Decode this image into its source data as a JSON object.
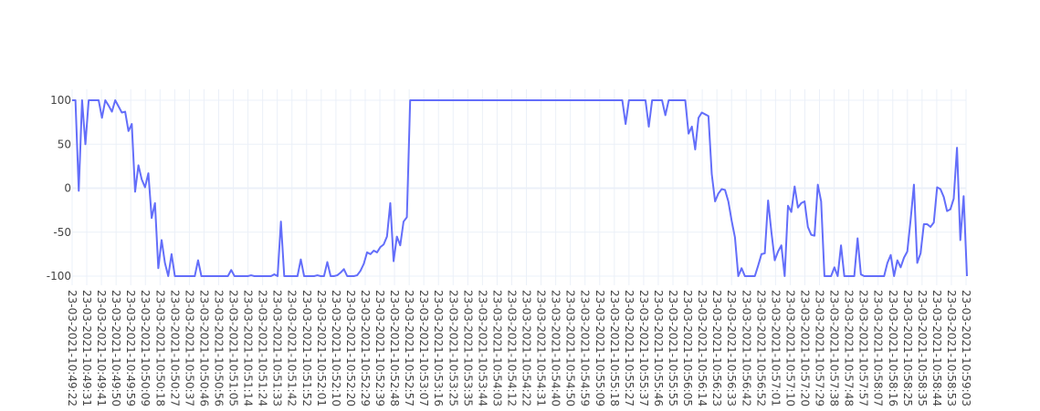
{
  "chart_data": {
    "type": "line",
    "title": "",
    "xlabel": "",
    "ylabel": "",
    "ylim": [
      -110,
      110
    ],
    "y_ticks": [
      100,
      50,
      0,
      -50,
      -100
    ],
    "grid": true,
    "legend": "none",
    "colors": {
      "line": "#636efa",
      "grid": "#ebf0f8",
      "zero_line": "#ebf0f8",
      "background": "#ffffff",
      "tick_text": "#444444"
    },
    "x_ticks": [
      "23-03-2021-10:49:22",
      "23-03-2021-10:49:31",
      "23-03-2021-10:49:41",
      "23-03-2021-10:49:50",
      "23-03-2021-10:49:59",
      "23-03-2021-10:50:09",
      "23-03-2021-10:50:18",
      "23-03-2021-10:50:27",
      "23-03-2021-10:50:37",
      "23-03-2021-10:50:46",
      "23-03-2021-10:50:56",
      "23-03-2021-10:51:05",
      "23-03-2021-10:51:14",
      "23-03-2021-10:51:24",
      "23-03-2021-10:51:33",
      "23-03-2021-10:51:42",
      "23-03-2021-10:51:52",
      "23-03-2021-10:52:01",
      "23-03-2021-10:52:10",
      "23-03-2021-10:52:20",
      "23-03-2021-10:52:29",
      "23-03-2021-10:52:39",
      "23-03-2021-10:52:48",
      "23-03-2021-10:52:57",
      "23-03-2021-10:53:07",
      "23-03-2021-10:53:16",
      "23-03-2021-10:53:25",
      "23-03-2021-10:53:35",
      "23-03-2021-10:53:44",
      "23-03-2021-10:54:03",
      "23-03-2021-10:54:12",
      "23-03-2021-10:54:22",
      "23-03-2021-10:54:31",
      "23-03-2021-10:54:40",
      "23-03-2021-10:54:50",
      "23-03-2021-10:54:59",
      "23-03-2021-10:55:09",
      "23-03-2021-10:55:18",
      "23-03-2021-10:55:27",
      "23-03-2021-10:55:37",
      "23-03-2021-10:55:46",
      "23-03-2021-10:55:55",
      "23-03-2021-10:56:05",
      "23-03-2021-10:56:14",
      "23-03-2021-10:56:23",
      "23-03-2021-10:56:33",
      "23-03-2021-10:56:42",
      "23-03-2021-10:56:52",
      "23-03-2021-10:57:01",
      "23-03-2021-10:57:10",
      "23-03-2021-10:57:20",
      "23-03-2021-10:57:29",
      "23-03-2021-10:57:38",
      "23-03-2021-10:57:48",
      "23-03-2021-10:57:57",
      "23-03-2021-10:58:07",
      "23-03-2021-10:58:16",
      "23-03-2021-10:58:25",
      "23-03-2021-10:58:35",
      "23-03-2021-10:58:44",
      "23-03-2021-10:58:53",
      "23-03-2021-10:59:03"
    ],
    "series": [
      {
        "values": [
          100,
          100,
          -3,
          100,
          50,
          100,
          100,
          100,
          100,
          80,
          100,
          94,
          87,
          100,
          93,
          86,
          87,
          65,
          73,
          -4,
          26,
          10,
          1,
          17,
          -34,
          -17,
          -91,
          -59,
          -85,
          -100,
          -75,
          -100,
          -100,
          -100,
          -100,
          -100,
          -100,
          -100,
          -82,
          -100,
          -100,
          -100,
          -100,
          -100,
          -100,
          -100,
          -100,
          -100,
          -93,
          -100,
          -100,
          -100,
          -100,
          -100,
          -99,
          -100,
          -100,
          -100,
          -100,
          -100,
          -100,
          -98,
          -100,
          -38,
          -100,
          -100,
          -100,
          -100,
          -100,
          -81,
          -100,
          -100,
          -100,
          -100,
          -99,
          -100,
          -100,
          -84,
          -100,
          -100,
          -99,
          -96,
          -92,
          -100,
          -100,
          -100,
          -99,
          -94,
          -86,
          -73,
          -75,
          -71,
          -73,
          -67,
          -64,
          -55,
          -17,
          -83,
          -55,
          -65,
          -38,
          -33,
          100,
          100,
          100,
          100,
          100,
          100,
          100,
          100,
          100,
          100,
          100,
          100,
          100,
          100,
          100,
          100,
          100,
          100,
          100,
          100,
          100,
          100,
          100,
          100,
          100,
          100,
          100,
          100,
          100,
          100,
          100,
          100,
          100,
          100,
          100,
          100,
          100,
          100,
          100,
          100,
          100,
          100,
          100,
          100,
          100,
          100,
          100,
          100,
          100,
          100,
          100,
          100,
          100,
          100,
          100,
          100,
          100,
          100,
          100,
          100,
          100,
          100,
          100,
          100,
          100,
          73,
          100,
          100,
          100,
          100,
          100,
          100,
          70,
          100,
          100,
          100,
          100,
          83,
          100,
          100,
          100,
          100,
          100,
          100,
          62,
          70,
          44,
          80,
          86,
          84,
          82,
          16,
          -15,
          -6,
          -1,
          -2,
          -15,
          -37,
          -56,
          -100,
          -91,
          -100,
          -100,
          -100,
          -100,
          -88,
          -75,
          -74,
          -14,
          -50,
          -82,
          -72,
          -65,
          -100,
          -20,
          -27,
          2,
          -22,
          -17,
          -15,
          -44,
          -53,
          -54,
          4,
          -15,
          -100,
          -100,
          -100,
          -90,
          -100,
          -65,
          -100,
          -100,
          -100,
          -100,
          -57,
          -98,
          -100,
          -100,
          -100,
          -100,
          -100,
          -100,
          -100,
          -85,
          -76,
          -100,
          -82,
          -90,
          -79,
          -72,
          -36,
          4,
          -85,
          -74,
          -41,
          -41,
          -44,
          -39,
          1,
          -1,
          -10,
          -26,
          -24,
          -12,
          46,
          -59,
          -9,
          -100
        ]
      }
    ]
  }
}
